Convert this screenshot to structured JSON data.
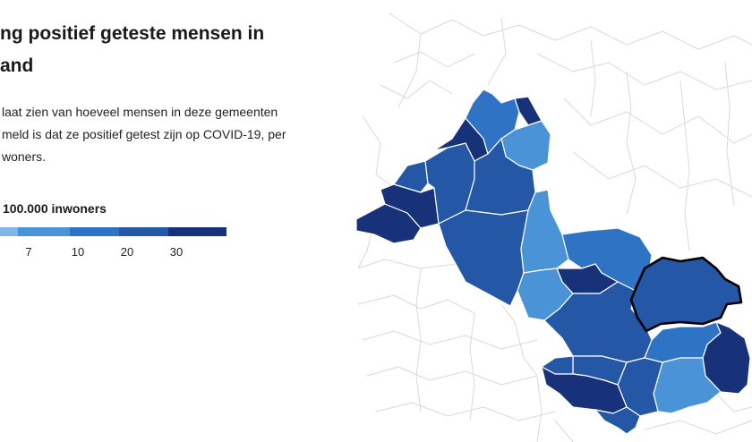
{
  "header": {
    "title_line1": "ng positief geteste mensen in",
    "title_line2": "and"
  },
  "description": {
    "line1": "laat zien van hoeveel mensen in deze gemeenten",
    "line2": "meld is dat ze positief getest zijn op COVID-19, per",
    "line3": "woners."
  },
  "legend": {
    "title": "100.000 inwoners",
    "ticks": [
      "7",
      "10",
      "20",
      "30"
    ],
    "colors": [
      "#7fb6e6",
      "#4a93d6",
      "#2f74c4",
      "#2458a6",
      "#18327a"
    ]
  },
  "map": {
    "background_lines_color": "#d9d9d9",
    "highlight_outline_color": "#000000"
  }
}
